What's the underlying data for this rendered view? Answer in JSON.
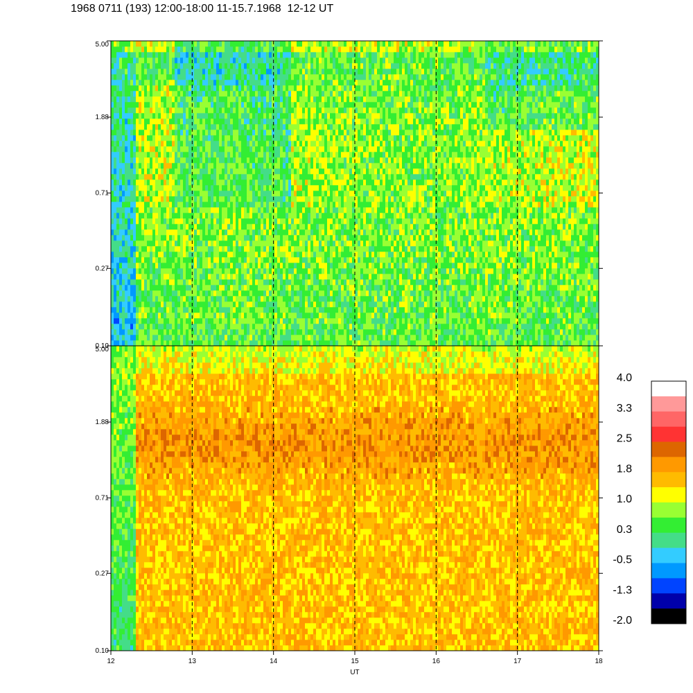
{
  "title": "1968 0711 (193) 12:00-18:00 11-15.7.1968  12-12 UT",
  "chart_data": {
    "type": "heatmap",
    "xlabel": "UT",
    "x_range": [
      12,
      18
    ],
    "x_ticks": [
      "12",
      "13",
      "14",
      "15",
      "16",
      "17",
      "18"
    ],
    "vertical_dashed_lines_at": [
      13,
      14,
      15,
      16,
      17
    ],
    "y_scale": "log",
    "panels": [
      {
        "id": "upper",
        "y_ticks": [
          "0.10",
          "0.27",
          "0.71",
          "1.88",
          "5.00"
        ],
        "y_range": [
          0.1,
          5.0
        ],
        "description_values": "low-level background, blue/cyan low-frequency region before ~12.3 UT, green/yellow elsewhere"
      },
      {
        "id": "lower",
        "y_ticks": [
          "0.10",
          "0.27",
          "0.71",
          "1.88",
          "5.00"
        ],
        "y_range": [
          0.1,
          5.0
        ]
      }
    ],
    "colorbar": {
      "labels": [
        "4.0",
        "3.3",
        "2.5",
        "1.8",
        "1.0",
        "0.3",
        "-0.5",
        "-1.3",
        "-2.0"
      ],
      "range": [
        -2.0,
        4.0
      ],
      "colors": [
        "#ffffff",
        "#ff9999",
        "#ff6666",
        "#ff3333",
        "#dd6600",
        "#ff9900",
        "#ffbb00",
        "#ffff00",
        "#99ff33",
        "#33ee33",
        "#44dd88",
        "#33ccff",
        "#0099ff",
        "#0044ff",
        "#0000aa",
        "#000000"
      ]
    }
  }
}
